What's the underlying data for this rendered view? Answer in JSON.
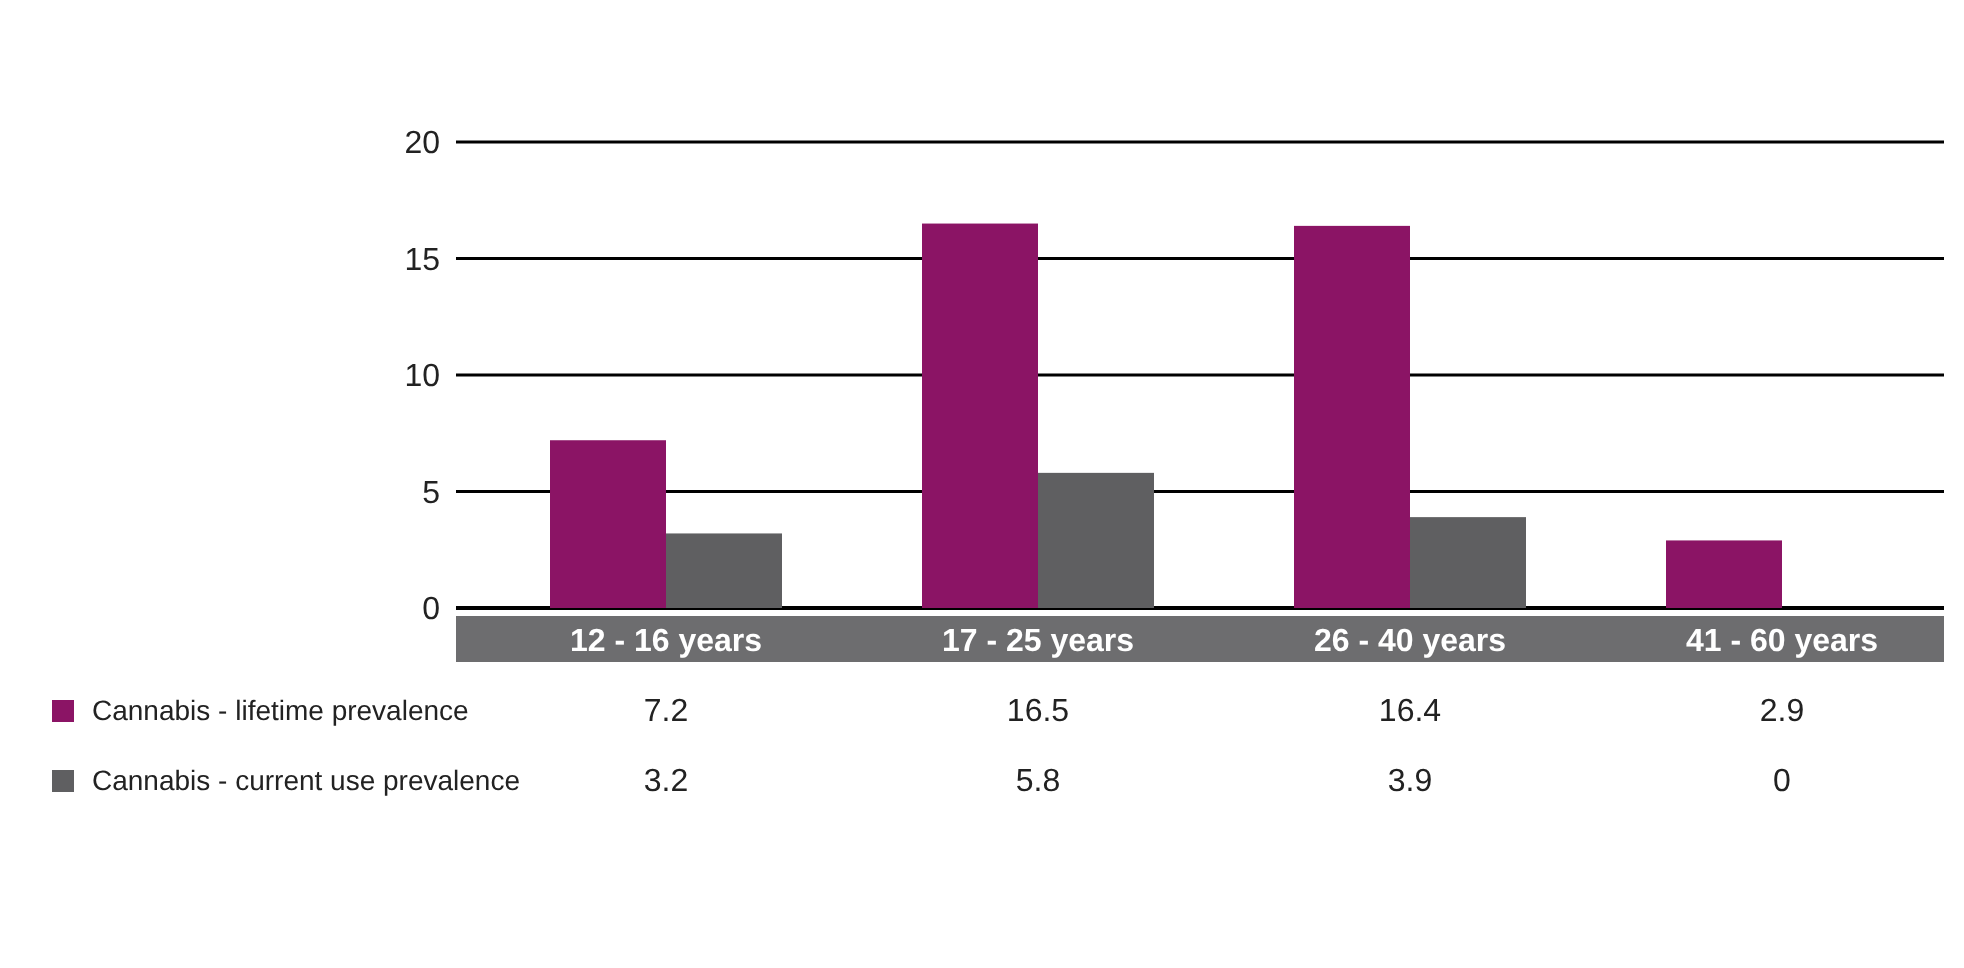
{
  "chart_data": {
    "type": "bar",
    "categories": [
      "12 - 16 years",
      "17 - 25 years",
      "26 - 40 years",
      "41 - 60 years"
    ],
    "series": [
      {
        "name": "Cannabis - lifetime prevalence",
        "color": "#8b1465",
        "values": [
          7.2,
          16.5,
          16.4,
          2.9
        ]
      },
      {
        "name": "Cannabis - current use prevalence",
        "color": "#5f5f61",
        "values": [
          3.2,
          5.8,
          3.9,
          0
        ]
      }
    ],
    "ylim": [
      0,
      20
    ],
    "yticks": [
      0,
      5,
      10,
      15,
      20
    ],
    "grid": "y",
    "legend": "bottom left",
    "data_labels": true
  }
}
